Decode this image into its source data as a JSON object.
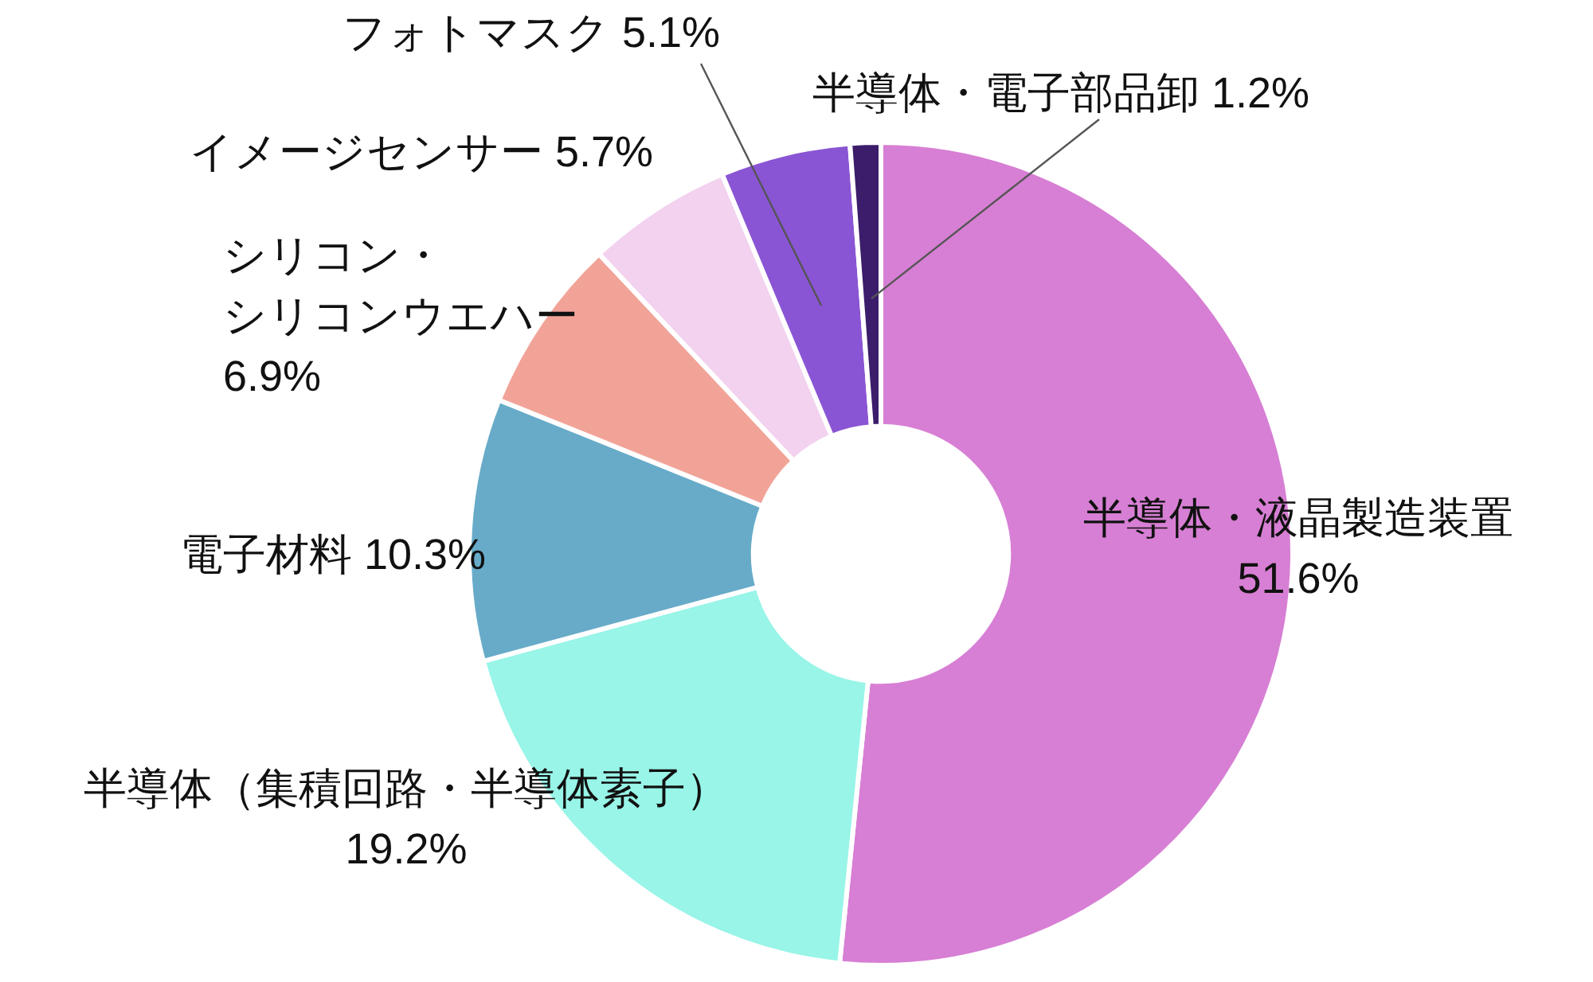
{
  "chart_data": {
    "type": "donut",
    "categories": [
      "半導体・液晶製造装置",
      "半導体（集積回路・半導体素子）",
      "電子材料",
      "シリコン・シリコンウエハー",
      "イメージセンサー",
      "フォトマスク",
      "半導体・電子部品卸"
    ],
    "values": [
      51.6,
      19.2,
      10.3,
      6.9,
      5.7,
      5.1,
      1.2
    ],
    "value_labels": [
      "51.6%",
      "19.2%",
      "10.3%",
      "6.9%",
      "5.7%",
      "5.1%",
      "1.2%"
    ],
    "colors": [
      "#d77fd4",
      "#98f5e8",
      "#67abc9",
      "#f2a398",
      "#f2d2ef",
      "#8a55d4",
      "#3b1d6b"
    ]
  }
}
